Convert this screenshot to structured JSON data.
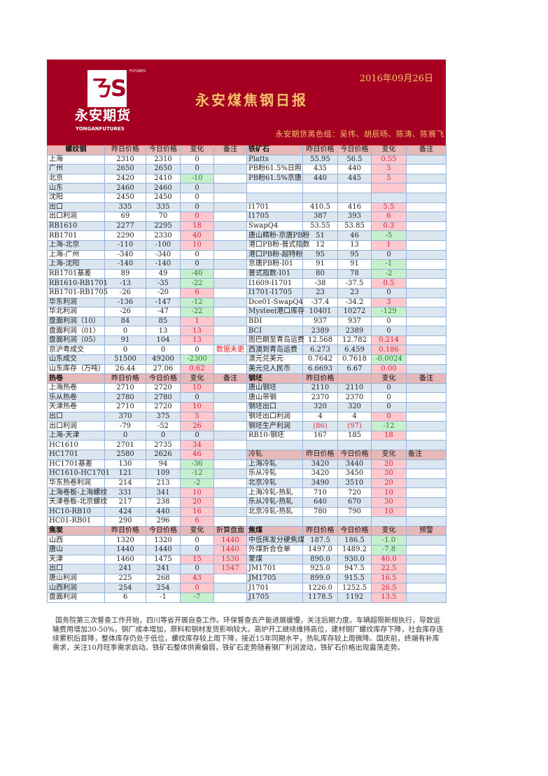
{
  "header": {
    "logo_text": "永安期货",
    "logo_en": "YONGANFUTURES",
    "logo_futures": "FUTURES",
    "date": "2016年09月26日",
    "title": "永安煤焦钢日报",
    "team": "永安期货黑色组：吴伟、胡辰旸、陈涛、陈赛飞"
  },
  "colors": {
    "banner": "#a50021",
    "gold": "#f5c26b",
    "up_bg": "#ffc7ce",
    "down_bg": "#c6efce",
    "header_bg": "#e6b8b7"
  },
  "sections": [
    {
      "left_header": [
        "螺纹钢",
        "昨日价格",
        "今日价格",
        "变化",
        "备注"
      ],
      "right_header": [
        "铁矿石",
        "昨日价格",
        "今日价格",
        "变化",
        "备注"
      ],
      "left_rows": [
        {
          "n": "上海",
          "p": "2310",
          "t": "2310",
          "c": "0",
          "tone": ""
        },
        {
          "n": "广州",
          "p": "2650",
          "t": "2650",
          "c": "0",
          "tone": ""
        },
        {
          "n": "北京",
          "p": "2420",
          "t": "2410",
          "c": "-10",
          "tone": "down"
        },
        {
          "n": "山东",
          "p": "2460",
          "t": "2460",
          "c": "0",
          "tone": ""
        },
        {
          "n": "沈阳",
          "p": "2450",
          "t": "2450",
          "c": "0",
          "tone": ""
        },
        {
          "n": "出口",
          "p": "335",
          "t": "335",
          "c": "0",
          "tone": ""
        },
        {
          "n": "出口利润",
          "p": "69",
          "t": "70",
          "c": "0",
          "tone": "up"
        },
        {
          "n": "RB1610",
          "p": "2277",
          "t": "2295",
          "c": "18",
          "tone": "up"
        },
        {
          "n": "RB1701",
          "p": "2290",
          "t": "2330",
          "c": "40",
          "tone": "up"
        },
        {
          "n": "上海-北京",
          "p": "-110",
          "t": "-100",
          "c": "10",
          "tone": "up"
        },
        {
          "n": "上海-广州",
          "p": "-340",
          "t": "-340",
          "c": "0",
          "tone": ""
        },
        {
          "n": "上海-沈阳",
          "p": "-140",
          "t": "-140",
          "c": "0",
          "tone": ""
        },
        {
          "n": "RB1701基差",
          "p": "89",
          "t": "49",
          "c": "-40",
          "tone": "down"
        },
        {
          "n": "RB1610-RB1701",
          "p": "-13",
          "t": "-35",
          "c": "-22",
          "tone": "down"
        },
        {
          "n": "RB1701-RB1705",
          "p": "-26",
          "t": "-20",
          "c": "6",
          "tone": "up"
        },
        {
          "n": "华东利润",
          "p": "-136",
          "t": "-147",
          "c": "-12",
          "tone": "down"
        },
        {
          "n": "华北利润",
          "p": "-26",
          "t": "-47",
          "c": "-22",
          "tone": "down"
        },
        {
          "n": "盘面利润（10）",
          "p": "84",
          "t": "85",
          "c": "1",
          "tone": "up"
        },
        {
          "n": "盘面利润（01）",
          "p": "0",
          "t": "13",
          "c": "13",
          "tone": "up"
        },
        {
          "n": "盘面利润（05）",
          "p": "91",
          "t": "104",
          "c": "13",
          "tone": "up"
        },
        {
          "n": "京沪粤成交",
          "p": "0",
          "t": "0",
          "c": "0",
          "tone": "",
          "note": "数据未更"
        },
        {
          "n": "山东成交",
          "p": "51500",
          "t": "49200",
          "c": "-2300",
          "tone": "down"
        },
        {
          "n": "山东库存（万吨）",
          "p": "26.44",
          "t": "27.06",
          "c": "0.62",
          "tone": "up"
        }
      ],
      "right_rows": [
        {
          "n": "Platts",
          "p": "55.95",
          "t": "56.5",
          "c": "0.55",
          "tone": "up"
        },
        {
          "n": "PB粉61.5%日照",
          "p": "435",
          "t": "440",
          "c": "5",
          "tone": "up"
        },
        {
          "n": "PB粉61.5%京唐",
          "p": "440",
          "t": "445",
          "c": "5",
          "tone": "up"
        },
        {
          "n": "",
          "p": "",
          "t": "",
          "c": "",
          "tone": "up"
        },
        {
          "n": "",
          "p": "",
          "t": "",
          "c": "",
          "tone": ""
        },
        {
          "n": "I1701",
          "p": "410.5",
          "t": "416",
          "c": "5.5",
          "tone": "up"
        },
        {
          "n": "I1705",
          "p": "387",
          "t": "393",
          "c": "6",
          "tone": "up"
        },
        {
          "n": "SwapQ4",
          "p": "53.55",
          "t": "53.85",
          "c": "0.3",
          "tone": "up"
        },
        {
          "n": "唐山精粉-京唐PB粉",
          "p": "51",
          "t": "46",
          "c": "-5",
          "tone": "down"
        },
        {
          "n": "港口PB粉-普式指数",
          "p": "12",
          "t": "13",
          "c": "1",
          "tone": "up"
        },
        {
          "n": "港口PB粉-超特粉",
          "p": "95",
          "t": "95",
          "c": "0",
          "tone": ""
        },
        {
          "n": "京唐PB粉-I01",
          "p": "91",
          "t": "91",
          "c": "-1",
          "tone": "down"
        },
        {
          "n": "普式指数-I01",
          "p": "80",
          "t": "78",
          "c": "-2",
          "tone": "down"
        },
        {
          "n": "I1609-I1701",
          "p": "-38",
          "t": "-37.5",
          "c": "0.5",
          "tone": "up"
        },
        {
          "n": "I1701-I1705",
          "p": "23",
          "t": "23",
          "c": "0",
          "tone": ""
        },
        {
          "n": "Dce01-SwapQ4",
          "p": "-37.4",
          "t": "-34.2",
          "c": "3",
          "tone": "up"
        },
        {
          "n": "Mysteel港口库存",
          "p": "10401",
          "t": "10272",
          "c": "-129",
          "tone": "down"
        },
        {
          "n": "BDI",
          "p": "937",
          "t": "937",
          "c": "0",
          "tone": ""
        },
        {
          "n": "BCI",
          "p": "2389",
          "t": "2389",
          "c": "0",
          "tone": ""
        },
        {
          "n": "图巴朗至青岛运费",
          "p": "12.568",
          "t": "12.782",
          "c": "0.214",
          "tone": "up"
        },
        {
          "n": "西澳到青岛运费",
          "p": "6.273",
          "t": "6.459",
          "c": "0.186",
          "tone": "up"
        },
        {
          "n": "澳元兑美元",
          "p": "0.7642",
          "t": "0.7618",
          "c": "-0.0024",
          "tone": "down"
        },
        {
          "n": "美元兑人民币",
          "p": "6.6693",
          "t": "6.67",
          "c": "0.00",
          "tone": "up"
        }
      ]
    },
    {
      "left_header": [
        "热卷",
        "昨日价格",
        "今日价格",
        "变化",
        "备注"
      ],
      "right_header": [
        "钢坯",
        "昨日价格",
        "",
        "变化",
        "备注"
      ],
      "left_rows": [
        {
          "n": "上海热卷",
          "p": "2710",
          "t": "2720",
          "c": "10",
          "tone": "up"
        },
        {
          "n": "乐从热卷",
          "p": "2780",
          "t": "2780",
          "c": "0",
          "tone": ""
        },
        {
          "n": "天津热卷",
          "p": "2710",
          "t": "2720",
          "c": "10",
          "tone": "up"
        },
        {
          "n": "出口",
          "p": "370",
          "t": "375",
          "c": "5",
          "tone": "up"
        },
        {
          "n": "出口利润",
          "p": "-79",
          "t": "-52",
          "c": "26",
          "tone": "up"
        },
        {
          "n": "上海-天津",
          "p": "0",
          "t": "0",
          "c": "0",
          "tone": ""
        },
        {
          "n": "HC1610",
          "p": "2701",
          "t": "2735",
          "c": "34",
          "tone": "up"
        },
        {
          "n": "HC1701",
          "p": "2580",
          "t": "2626",
          "c": "46",
          "tone": "up"
        },
        {
          "n": "HC1701基差",
          "p": "130",
          "t": "94",
          "c": "-36",
          "tone": "down"
        },
        {
          "n": "HC1610-HC1701",
          "p": "121",
          "t": "109",
          "c": "-12",
          "tone": "down"
        },
        {
          "n": "华东热卷利润",
          "p": "214",
          "t": "213",
          "c": "-2",
          "tone": "down"
        },
        {
          "n": "上海卷板-上海螺纹",
          "p": "331",
          "t": "341",
          "c": "10",
          "tone": "up"
        },
        {
          "n": "天津卷板-北京螺纹",
          "p": "217",
          "t": "238",
          "c": "20",
          "tone": "up"
        },
        {
          "n": "HC10-RB10",
          "p": "424",
          "t": "440",
          "c": "16",
          "tone": "up"
        },
        {
          "n": "HC01-RB01",
          "p": "290",
          "t": "296",
          "c": "6",
          "tone": "up"
        }
      ],
      "right_rows": [
        {
          "n": "唐山钢坯",
          "p": "2110",
          "t": "2110",
          "c": "0",
          "tone": ""
        },
        {
          "n": "唐山带钢",
          "p": "2370",
          "t": "2370",
          "c": "0",
          "tone": ""
        },
        {
          "n": "钢坯出口",
          "p": "320",
          "t": "320",
          "c": "0",
          "tone": ""
        },
        {
          "n": "钢坯出口利润",
          "p": "4",
          "t": "4",
          "c": "0",
          "tone": "up"
        },
        {
          "n": "钢坯生产利润",
          "p": "(86)",
          "t": "(97)",
          "c": "-12",
          "tone": "down",
          "red": true
        },
        {
          "n": "RB10-钢坯",
          "p": "167",
          "t": "185",
          "c": "18",
          "tone": "up"
        },
        {
          "n": "",
          "p": "",
          "t": "",
          "c": "",
          "tone": ""
        },
        {
          "header": true,
          "n": "冷轧",
          "p": "昨日价格",
          "t": "今日价格",
          "c": "变化",
          "note": "备注"
        },
        {
          "n": "上海冷轧",
          "p": "3420",
          "t": "3440",
          "c": "20",
          "tone": "up"
        },
        {
          "n": "乐从冷轧",
          "p": "3420",
          "t": "3450",
          "c": "30",
          "tone": "up"
        },
        {
          "n": "北京冷轧",
          "p": "3490",
          "t": "3510",
          "c": "20",
          "tone": "up"
        },
        {
          "n": "上海冷轧-热轧",
          "p": "710",
          "t": "720",
          "c": "10",
          "tone": "up"
        },
        {
          "n": "乐从冷轧-热轧",
          "p": "640",
          "t": "670",
          "c": "30",
          "tone": "up"
        },
        {
          "n": "北京冷轧-热轧",
          "p": "780",
          "t": "790",
          "c": "10",
          "tone": "up"
        },
        {
          "n": "",
          "p": "",
          "t": "",
          "c": "",
          "tone": ""
        }
      ]
    },
    {
      "left_header": [
        "焦炭",
        "昨日价格",
        "今日价格",
        "变化",
        "折算盘面"
      ],
      "right_header": [
        "焦煤",
        "昨日价格",
        "今日价格",
        "变化",
        "预警"
      ],
      "left_rows": [
        {
          "n": "山西",
          "p": "1320",
          "t": "1320",
          "c": "0",
          "tone": "",
          "note": "1440"
        },
        {
          "n": "唐山",
          "p": "1440",
          "t": "1440",
          "c": "0",
          "tone": "",
          "note": "1440"
        },
        {
          "n": "天津",
          "p": "1460",
          "t": "1475",
          "c": "15",
          "tone": "up",
          "note": "1530"
        },
        {
          "n": "出口",
          "p": "241",
          "t": "241",
          "c": "0",
          "tone": "",
          "note": "1547"
        },
        {
          "n": "唐山利润",
          "p": "225",
          "t": "268",
          "c": "43",
          "tone": "up"
        },
        {
          "n": "山西利润",
          "p": "254",
          "t": "254",
          "c": "0",
          "tone": "up"
        },
        {
          "n": "盘面利润",
          "p": "6",
          "t": "-1",
          "c": "-7",
          "tone": "down"
        }
      ],
      "right_rows": [
        {
          "n": "中低挥发分硬焦煤",
          "p": "187.5",
          "t": "186.5",
          "c": "-1.0",
          "tone": "down"
        },
        {
          "n": "外煤折合仓单",
          "p": "1497.0",
          "t": "1489.2",
          "c": "-7.8",
          "tone": "down"
        },
        {
          "n": "蒙煤",
          "p": "890.0",
          "t": "930.0",
          "c": "40.0",
          "tone": "up"
        },
        {
          "n": "JM1701",
          "p": "925.0",
          "t": "947.5",
          "c": "22.5",
          "tone": "up"
        },
        {
          "n": "JM1705",
          "p": "899.0",
          "t": "915.5",
          "c": "16.5",
          "tone": "up"
        },
        {
          "n": "J1701",
          "p": "1226.0",
          "t": "1252.5",
          "c": "26.5",
          "tone": "up"
        },
        {
          "n": "J1705",
          "p": "1178.5",
          "t": "1192",
          "c": "13.5",
          "tone": "up"
        }
      ]
    }
  ],
  "commentary": "国务院第三次督查工作开始，四川等省开展自查工作。环保督查去产能进展缓慢，关注后期力度。车辆超限新规执行，导致运输费用增加30-50%，钢厂成本增加，原料和钢材发货影响较大。高炉开工继续维持高位，建材钢厂螺纹库存下降，社会库存连续累积后首降，整体库存仍处于低位，螺纹库存较上周下降，接近15年同期水平，热轧库存较上周微降。国庆前，终端有补库需求，关注10月旺季需求启动。铁矿石整体供需偏弱，铁矿石走势随着钢厂利润波动，铁矿石价格出现震荡走势。"
}
